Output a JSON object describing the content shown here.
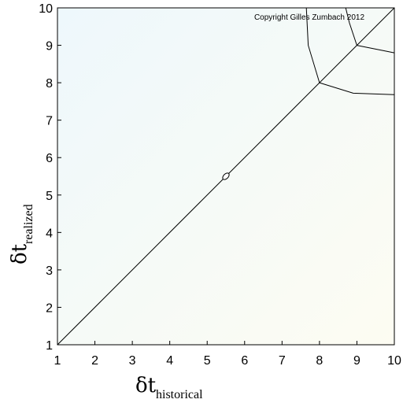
{
  "chart_data": {
    "type": "line",
    "title": "",
    "xlabel": {
      "symbol": "δt",
      "subscript": "historical"
    },
    "ylabel": {
      "symbol": "δt",
      "subscript": "realized"
    },
    "xlim": [
      1,
      10
    ],
    "ylim": [
      1,
      10
    ],
    "xticks": [
      "1",
      "2",
      "3",
      "4",
      "5",
      "6",
      "7",
      "8",
      "9",
      "10"
    ],
    "yticks": [
      "1",
      "2",
      "3",
      "4",
      "5",
      "6",
      "7",
      "8",
      "9",
      "10"
    ],
    "grid": false,
    "annotation": "Copyright Gilles Zumbach 2012",
    "background": {
      "top_left": "#eef8fc",
      "bottom_right": "#fdfcf2"
    },
    "series": [
      {
        "x": [
          1,
          10
        ],
        "y": [
          1,
          10
        ]
      },
      {
        "x": [
          8,
          7.7,
          7.65
        ],
        "y": [
          8,
          9.0,
          10
        ]
      },
      {
        "x": [
          8,
          8.9,
          10
        ],
        "y": [
          8,
          7.72,
          7.68
        ]
      },
      {
        "x": [
          9,
          8.8,
          8.7
        ],
        "y": [
          9,
          9.6,
          10
        ]
      },
      {
        "x": [
          9,
          9.7,
          10
        ],
        "y": [
          9,
          8.86,
          8.8
        ]
      }
    ],
    "markers": [
      {
        "x": 5.5,
        "y": 5.5,
        "shape": "ellipse"
      }
    ]
  }
}
